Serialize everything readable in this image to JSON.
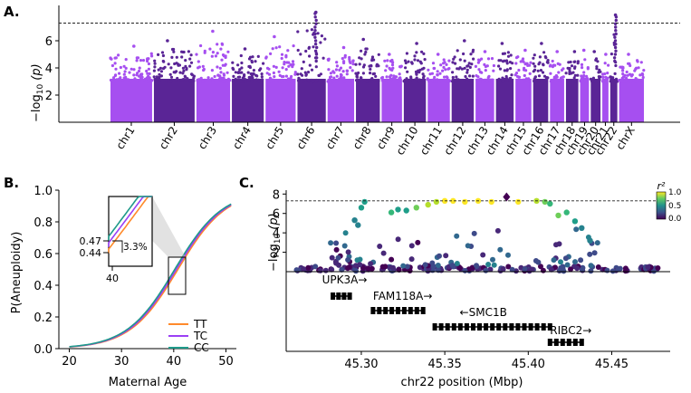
{
  "colors": {
    "purple_light": "#a64ff0",
    "purple_dark": "#5a2596",
    "TT": "#ff8a2b",
    "TC": "#9b3ff5",
    "CC": "#1f9a8a",
    "threshold": "#222222"
  },
  "chart_data": [
    {
      "panel": "A.",
      "type": "scatter",
      "subtype": "manhattan",
      "xlabel": "",
      "ylabel_prefix": "−log",
      "ylabel_sub": "10",
      "ylabel_suffix": " (p)",
      "ylim": [
        0,
        8.6
      ],
      "yticks": [
        2,
        4,
        6
      ],
      "threshold": 7.3,
      "chromosomes": [
        {
          "name": "chr1",
          "peak": 5.6
        },
        {
          "name": "chr2",
          "peak": 6.0
        },
        {
          "name": "chr3",
          "peak": 6.7
        },
        {
          "name": "chr4",
          "peak": 5.4
        },
        {
          "name": "chr5",
          "peak": 6.3
        },
        {
          "name": "chr6",
          "peak": 8.1
        },
        {
          "name": "chr7",
          "peak": 5.5
        },
        {
          "name": "chr8",
          "peak": 6.1
        },
        {
          "name": "chr9",
          "peak": 5.0
        },
        {
          "name": "chr10",
          "peak": 5.8
        },
        {
          "name": "chr11",
          "peak": 5.0
        },
        {
          "name": "chr12",
          "peak": 6.0
        },
        {
          "name": "chr13",
          "peak": 5.2
        },
        {
          "name": "chr14",
          "peak": 5.8
        },
        {
          "name": "chr15",
          "peak": 5.3
        },
        {
          "name": "chr16",
          "peak": 5.8
        },
        {
          "name": "chr17",
          "peak": 5.2
        },
        {
          "name": "chr18",
          "peak": 5.2
        },
        {
          "name": "chr19",
          "peak": 5.3
        },
        {
          "name": "chr20",
          "peak": 5.2
        },
        {
          "name": "chr21",
          "peak": 5.0
        },
        {
          "name": "chr22",
          "peak": 7.9
        },
        {
          "name": "chrX",
          "peak": 5.0
        }
      ]
    },
    {
      "panel": "B.",
      "type": "line",
      "xlabel": "Maternal Age",
      "ylabel": "P(Aneuploidy)",
      "xlim": [
        18,
        52
      ],
      "ylim": [
        0,
        1.0
      ],
      "xticks": [
        20,
        30,
        40,
        50
      ],
      "yticks": [
        0.0,
        0.2,
        0.4,
        0.6,
        0.8,
        1.0
      ],
      "series": [
        {
          "name": "TT",
          "midpoint": 40.8
        },
        {
          "name": "TC",
          "midpoint": 40.5
        },
        {
          "name": "CC",
          "midpoint": 40.2
        }
      ],
      "inset": {
        "xtick": "40",
        "ytick_upper": "0.47",
        "ytick_lower": "0.44",
        "annotation": "3.3%"
      },
      "legend_position": "lower-right"
    },
    {
      "panel": "C.",
      "type": "scatter",
      "subtype": "regional association",
      "xlabel": "chr22 position (Mbp)",
      "ylabel_prefix": "−log",
      "ylabel_sub": "10",
      "ylabel_suffix": " (p)",
      "xlim": [
        45.255,
        45.485
      ],
      "ylim": [
        0,
        8.4
      ],
      "yticks": [
        2,
        4,
        6,
        8
      ],
      "xticks": [
        "45.30",
        "45.35",
        "45.40",
        "45.45"
      ],
      "threshold": 7.3,
      "colorbar": {
        "label": "r²",
        "ticks": [
          "1.0",
          "0.5",
          "0.0"
        ]
      },
      "genes": [
        {
          "name": "UPK3A→",
          "start": 45.283,
          "end": 45.293,
          "row": 0
        },
        {
          "name": "FAM118A→",
          "start": 45.307,
          "end": 45.337,
          "row": 1
        },
        {
          "name": "←SMC1B",
          "start": 45.344,
          "end": 45.413,
          "row": 2
        },
        {
          "name": "RIBC2→",
          "start": 45.413,
          "end": 45.432,
          "row": 3
        }
      ]
    }
  ]
}
